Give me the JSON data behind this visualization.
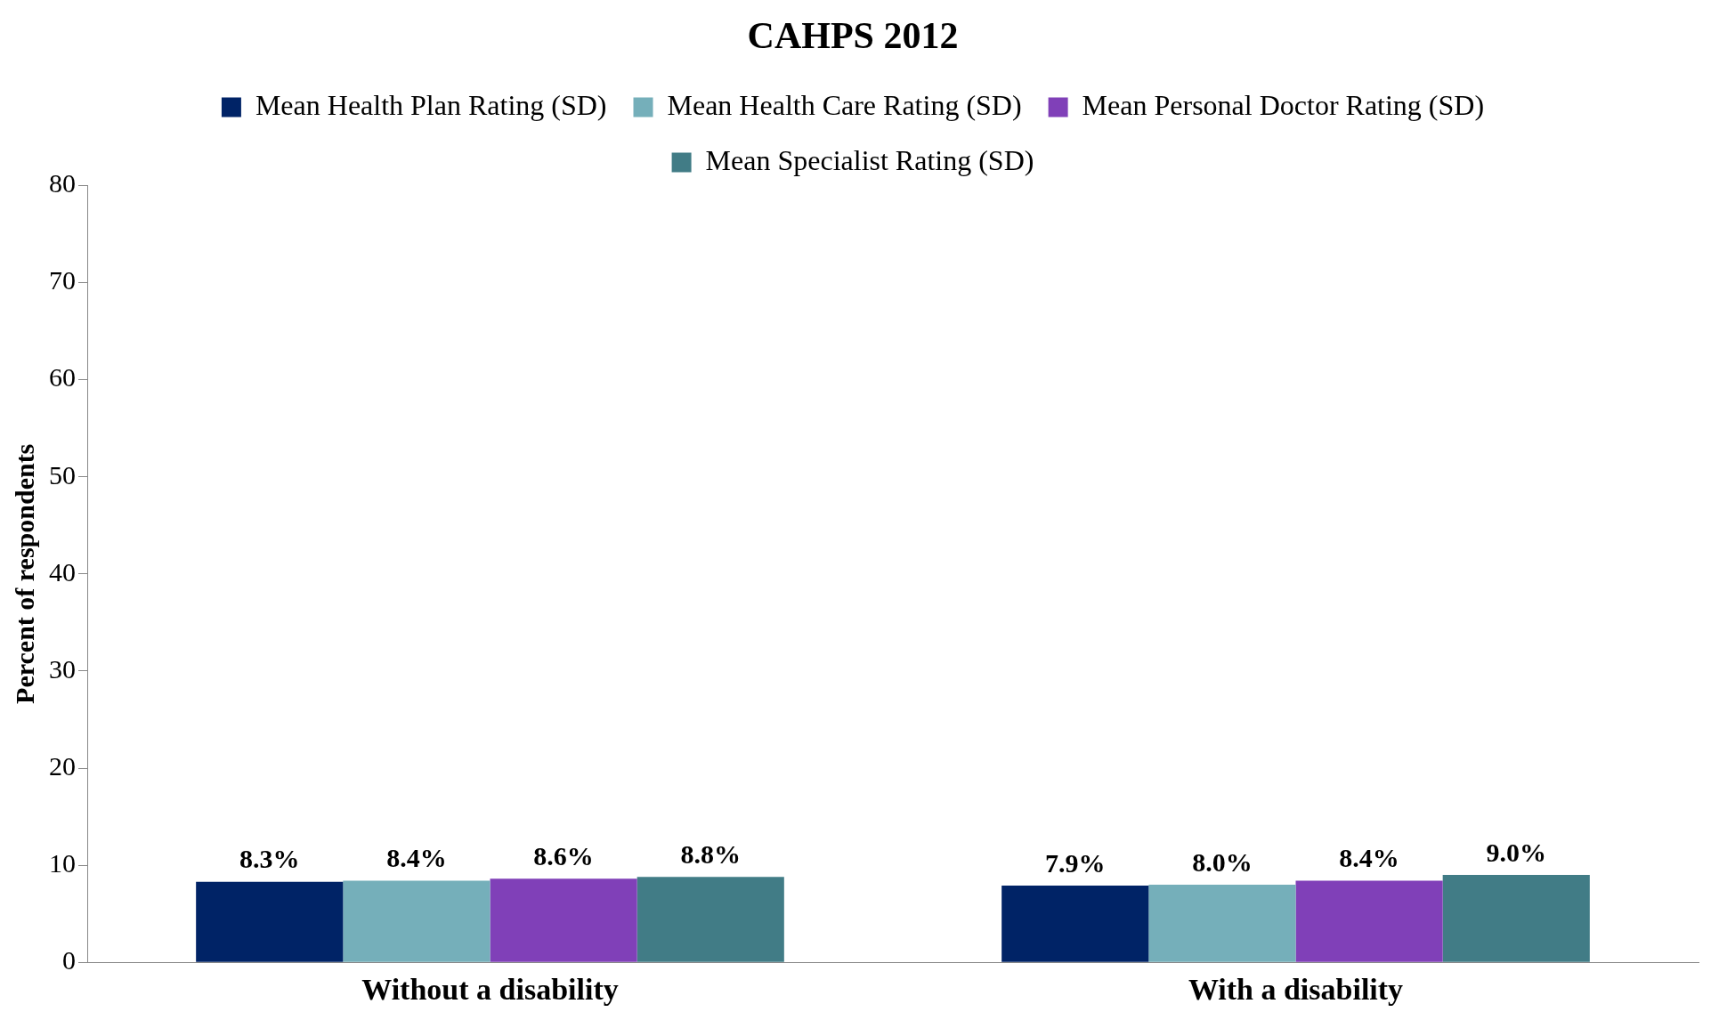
{
  "chart_data": {
    "type": "bar",
    "title": "CAHPS 2012",
    "ylabel": "Percent of respondents",
    "categories": [
      "Without a disability",
      "With a disability"
    ],
    "series": [
      {
        "name": "Mean Health Plan Rating (SD)",
        "color": "#002366",
        "values": [
          8.3,
          7.9
        ],
        "value_labels": [
          "8.3%",
          "7.9%"
        ]
      },
      {
        "name": "Mean Health Care Rating (SD)",
        "color": "#75afba",
        "values": [
          8.4,
          8.0
        ],
        "value_labels": [
          "8.4%",
          "8.0%"
        ]
      },
      {
        "name": "Mean Personal Doctor Rating (SD)",
        "color": "#8040b8",
        "values": [
          8.6,
          8.4
        ],
        "value_labels": [
          "8.6%",
          "8.4%"
        ]
      },
      {
        "name": "Mean Specialist Rating (SD)",
        "color": "#417c86",
        "values": [
          8.8,
          9.0
        ],
        "value_labels": [
          "8.8%",
          "9.0%"
        ]
      }
    ],
    "ylim": [
      0,
      80
    ],
    "yticks": [
      0,
      10,
      20,
      30,
      40,
      50,
      60,
      70,
      80
    ],
    "grid": false,
    "legend": "top"
  }
}
